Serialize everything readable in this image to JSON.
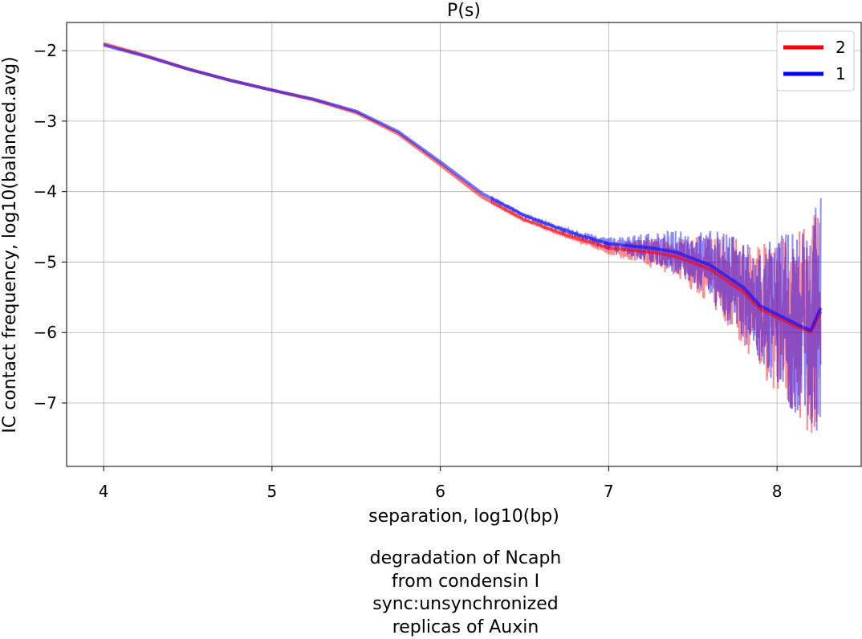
{
  "chart_data": {
    "type": "line",
    "title": "P(s)",
    "xlabel": "separation, log10(bp)",
    "ylabel": "IC contact frequency, log10(balanced.avg)",
    "xlim": [
      3.78,
      8.5
    ],
    "ylim": [
      -7.9,
      -1.6
    ],
    "xticks": [
      4,
      5,
      6,
      7,
      8
    ],
    "yticks": [
      -2,
      -3,
      -4,
      -5,
      -6,
      -7
    ],
    "xtick_labels": [
      "4",
      "5",
      "6",
      "7",
      "8"
    ],
    "ytick_labels": [
      "−2",
      "−3",
      "−4",
      "−5",
      "−6",
      "−7"
    ],
    "grid": true,
    "legend_position": "top-right",
    "series": [
      {
        "name": "2",
        "color": "#ff0000",
        "x": [
          4.0,
          4.25,
          4.5,
          4.75,
          5.0,
          5.25,
          5.5,
          5.75,
          6.0,
          6.25,
          6.5,
          6.75,
          7.0,
          7.25,
          7.4,
          7.6,
          7.8,
          7.9,
          8.0,
          8.1,
          8.15,
          8.2,
          8.26
        ],
        "y": [
          -1.9,
          -2.07,
          -2.26,
          -2.42,
          -2.56,
          -2.7,
          -2.88,
          -3.18,
          -3.62,
          -4.08,
          -4.4,
          -4.62,
          -4.8,
          -4.86,
          -4.92,
          -5.1,
          -5.42,
          -5.67,
          -5.78,
          -5.9,
          -5.95,
          -6.0,
          -5.7
        ]
      },
      {
        "name": "1",
        "color": "#0000ff",
        "x": [
          4.0,
          4.25,
          4.5,
          4.75,
          5.0,
          5.25,
          5.5,
          5.75,
          6.0,
          6.25,
          6.5,
          6.75,
          7.0,
          7.25,
          7.4,
          7.6,
          7.8,
          7.9,
          8.0,
          8.1,
          8.15,
          8.2,
          8.26
        ],
        "y": [
          -1.92,
          -2.08,
          -2.26,
          -2.42,
          -2.56,
          -2.69,
          -2.86,
          -3.15,
          -3.58,
          -4.03,
          -4.34,
          -4.56,
          -4.74,
          -4.8,
          -4.86,
          -5.04,
          -5.36,
          -5.62,
          -5.74,
          -5.86,
          -5.92,
          -5.97,
          -5.65
        ]
      }
    ]
  },
  "caption": {
    "lines": [
      "degradation of Ncaph",
      "from condensin I",
      "sync:unsynchronized",
      "replicas of Auxin"
    ]
  }
}
